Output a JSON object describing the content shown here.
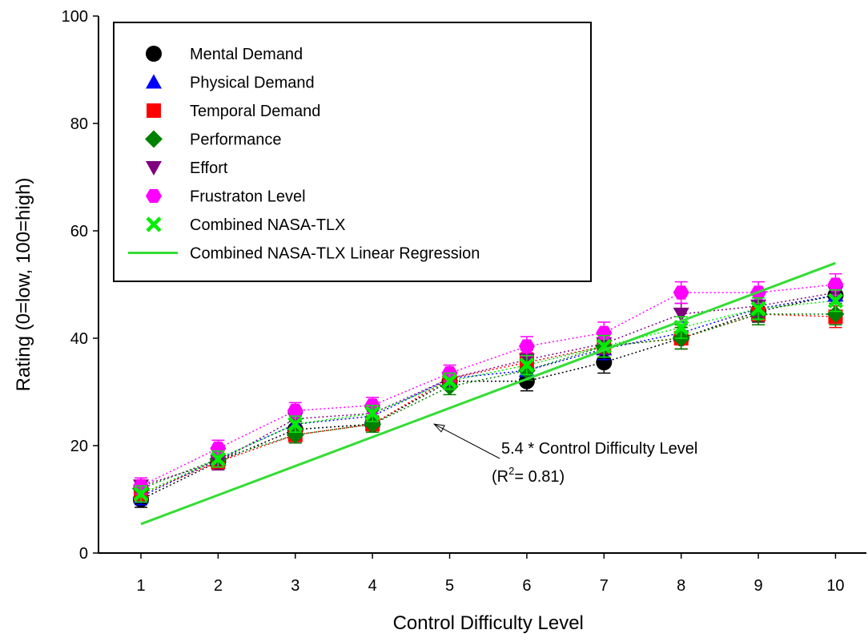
{
  "chart_data": {
    "type": "scatter",
    "xlabel": "Control Difficulty Level",
    "ylabel": "Rating (0=low, 100=high)",
    "x": [
      1,
      2,
      3,
      4,
      5,
      6,
      7,
      8,
      9,
      10
    ],
    "xlim": [
      0.45,
      10.4
    ],
    "ylim": [
      0,
      100
    ],
    "yticks": [
      0,
      20,
      40,
      60,
      80,
      100
    ],
    "grid": false,
    "legend_position": "top-left",
    "series": [
      {
        "name": "Mental Demand",
        "marker": "circle",
        "color": "#000000",
        "values": [
          10,
          17,
          23,
          24,
          32,
          32,
          35.5,
          40,
          45,
          48
        ],
        "err": [
          1.5,
          1.5,
          1.5,
          1.5,
          1.5,
          1.8,
          2,
          2,
          2,
          2
        ]
      },
      {
        "name": "Physical Demand",
        "marker": "triangle-up",
        "color": "#0000ff",
        "values": [
          10.5,
          17.5,
          24,
          25.5,
          32.5,
          34,
          38,
          41,
          45.5,
          48
        ],
        "err": [
          1.5,
          1.5,
          1.5,
          1.5,
          1.5,
          1.8,
          2,
          2,
          2,
          2
        ]
      },
      {
        "name": "Temporal Demand",
        "marker": "square",
        "color": "#ff0000",
        "values": [
          11,
          17,
          22,
          24,
          32.5,
          35.5,
          38.5,
          40,
          44.5,
          44
        ],
        "err": [
          1.5,
          1.5,
          1.5,
          1.5,
          1.5,
          1.8,
          2,
          2,
          2,
          2
        ]
      },
      {
        "name": "Performance",
        "marker": "diamond",
        "color": "#008000",
        "values": [
          12,
          17.5,
          22,
          24,
          31,
          34,
          38.5,
          40,
          44.5,
          44.5
        ],
        "err": [
          1.5,
          1.5,
          1.5,
          1.5,
          1.5,
          1.8,
          2,
          2,
          2,
          2
        ]
      },
      {
        "name": "Effort",
        "marker": "triangle-down",
        "color": "#800080",
        "values": [
          12.5,
          17,
          25,
          26,
          32.5,
          36,
          39,
          44.5,
          46,
          48.5
        ],
        "err": [
          1.5,
          1.5,
          1.5,
          1.5,
          1.5,
          1.8,
          2,
          2,
          2,
          2
        ]
      },
      {
        "name": "Frustraton Level",
        "marker": "hexagon",
        "color": "#ff00ff",
        "values": [
          12.5,
          19.5,
          26.5,
          27.5,
          33.5,
          38.5,
          41,
          48.5,
          48.5,
          50
        ],
        "err": [
          1.5,
          1.5,
          1.5,
          1.5,
          1.5,
          1.8,
          2,
          2,
          2,
          2
        ]
      },
      {
        "name": "Combined NASA-TLX",
        "marker": "x",
        "color": "#00ee00",
        "values": [
          11,
          17.5,
          24,
          26,
          32,
          35,
          38.5,
          42,
          45.5,
          47
        ],
        "err": [
          1.5,
          1.5,
          1.5,
          1.5,
          1.5,
          1.8,
          2,
          2,
          2,
          2
        ]
      }
    ],
    "regression": {
      "name": "Combined NASA-TLX Linear Regression",
      "color": "#33dd33",
      "slope": 5.4,
      "x_range": [
        1,
        10
      ]
    },
    "annotation": {
      "line1": "5.4 * Control Difficulty Level",
      "line2_prefix": "(R",
      "line2_sup": "2",
      "line2_suffix": "= 0.81)",
      "arrow_target": {
        "x": 4.8,
        "y": 24
      }
    }
  }
}
